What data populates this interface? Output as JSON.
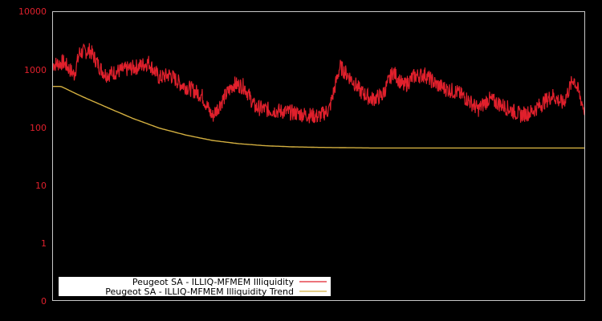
{
  "chart_data": {
    "type": "line",
    "title": "",
    "xlabel": "",
    "ylabel": "",
    "yscale": "log",
    "ylim": [
      0.1,
      10000
    ],
    "y_ticks": [
      "10000",
      "1000",
      "100",
      "10",
      "1",
      "0"
    ],
    "x_ticks": [],
    "grid": false,
    "legend_position": "lower-left",
    "background": "#000000",
    "frame_color": "#c8c8c8",
    "tick_label_color": "#e0202c",
    "series": [
      {
        "name": "Peugeot SA - ILLIQ-MFMEM Illiquidity",
        "color": "#e0202c",
        "x_frac": [
          0.0,
          0.02,
          0.04,
          0.05,
          0.07,
          0.09,
          0.1,
          0.12,
          0.14,
          0.16,
          0.18,
          0.2,
          0.22,
          0.24,
          0.26,
          0.28,
          0.3,
          0.32,
          0.34,
          0.36,
          0.38,
          0.4,
          0.42,
          0.44,
          0.46,
          0.48,
          0.5,
          0.52,
          0.54,
          0.56,
          0.58,
          0.6,
          0.62,
          0.64,
          0.66,
          0.68,
          0.7,
          0.72,
          0.74,
          0.76,
          0.78,
          0.8,
          0.82,
          0.84,
          0.86,
          0.88,
          0.9,
          0.92,
          0.94,
          0.96,
          0.98,
          1.0
        ],
        "values": [
          1200,
          1300,
          800,
          1900,
          2100,
          1000,
          800,
          900,
          1000,
          1100,
          1300,
          700,
          800,
          550,
          450,
          350,
          150,
          300,
          550,
          500,
          220,
          200,
          190,
          180,
          170,
          160,
          150,
          200,
          1100,
          700,
          400,
          300,
          350,
          900,
          500,
          750,
          800,
          550,
          450,
          400,
          300,
          200,
          300,
          250,
          200,
          160,
          180,
          250,
          350,
          250,
          700,
          200
        ]
      },
      {
        "name": "Peugeot SA - ILLIQ-MFMEM Illiquidity Trend",
        "color": "#d4b040",
        "x_frac": [
          0.0,
          0.015,
          0.05,
          0.1,
          0.15,
          0.2,
          0.25,
          0.3,
          0.35,
          0.4,
          0.45,
          0.5,
          0.55,
          0.6,
          0.7,
          0.8,
          0.9,
          1.0
        ],
        "values": [
          500,
          500,
          350,
          220,
          140,
          95,
          72,
          58,
          51,
          47,
          45,
          44,
          43.5,
          43,
          43,
          43,
          43,
          43
        ]
      }
    ]
  },
  "legend": {
    "items": [
      {
        "label": "Peugeot SA - ILLIQ-MFMEM Illiquidity",
        "color": "#e0202c"
      },
      {
        "label": "Peugeot SA - ILLIQ-MFMEM Illiquidity Trend",
        "color": "#d4b040"
      }
    ]
  },
  "axis": {
    "y_labels": [
      "10000",
      "1000",
      "100",
      "10",
      "1",
      "0"
    ]
  }
}
